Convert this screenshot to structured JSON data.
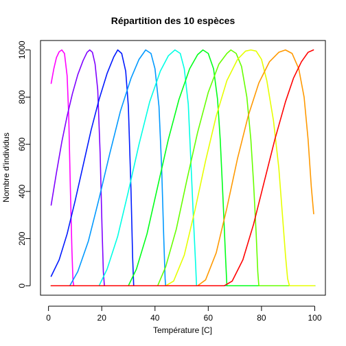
{
  "chart_data": {
    "type": "line",
    "title": "Répartition des 10 espèces",
    "xlabel": "Température [C]",
    "ylabel": "Nombre d'individus",
    "xlim": [
      -3,
      104
    ],
    "ylim": [
      -40,
      1040
    ],
    "x_ticks": [
      0,
      20,
      40,
      60,
      80,
      100
    ],
    "y_ticks": [
      0,
      200,
      400,
      600,
      800,
      1000
    ],
    "x_tick_labels": [
      "0",
      "20",
      "40",
      "60",
      "80",
      "100"
    ],
    "y_tick_labels": [
      "0",
      "200",
      "400",
      "600",
      "800",
      "1000"
    ],
    "grid": false,
    "legend": "none",
    "series": [
      {
        "color": "#FF00FF",
        "points": [
          [
            1,
            858
          ],
          [
            2,
            920
          ],
          [
            3,
            968
          ],
          [
            4,
            992
          ],
          [
            5,
            1000
          ],
          [
            6,
            985
          ],
          [
            7,
            890
          ],
          [
            7.6,
            720
          ],
          [
            8.2,
            420
          ],
          [
            8.8,
            150
          ],
          [
            9.2,
            20
          ],
          [
            9.5,
            0
          ],
          [
            100,
            0
          ]
        ]
      },
      {
        "color": "#7F00FF",
        "points": [
          [
            1,
            342
          ],
          [
            3,
            480
          ],
          [
            5,
            610
          ],
          [
            7,
            720
          ],
          [
            9,
            815
          ],
          [
            11,
            895
          ],
          [
            13,
            955
          ],
          [
            14.5,
            990
          ],
          [
            15.5,
            1000
          ],
          [
            16.5,
            990
          ],
          [
            17.5,
            940
          ],
          [
            18.5,
            830
          ],
          [
            19.4,
            560
          ],
          [
            20.1,
            250
          ],
          [
            20.6,
            60
          ],
          [
            21,
            0
          ],
          [
            100,
            0
          ]
        ]
      },
      {
        "color": "#0019FF",
        "points": [
          [
            1,
            40
          ],
          [
            4,
            110
          ],
          [
            7,
            220
          ],
          [
            10,
            360
          ],
          [
            13,
            510
          ],
          [
            16,
            660
          ],
          [
            19,
            790
          ],
          [
            22,
            900
          ],
          [
            24.5,
            970
          ],
          [
            26,
            1000
          ],
          [
            27.5,
            985
          ],
          [
            29,
            910
          ],
          [
            30,
            760
          ],
          [
            31,
            400
          ],
          [
            31.6,
            120
          ],
          [
            32,
            0
          ],
          [
            100,
            0
          ]
        ]
      },
      {
        "color": "#0099FF",
        "points": [
          [
            1,
            0
          ],
          [
            8,
            0
          ],
          [
            11,
            60
          ],
          [
            15,
            190
          ],
          [
            19,
            370
          ],
          [
            23,
            560
          ],
          [
            27,
            740
          ],
          [
            31,
            880
          ],
          [
            34,
            960
          ],
          [
            36.5,
            1000
          ],
          [
            38.5,
            985
          ],
          [
            40,
            920
          ],
          [
            41.5,
            760
          ],
          [
            42.5,
            500
          ],
          [
            43.3,
            200
          ],
          [
            43.8,
            30
          ],
          [
            44,
            0
          ],
          [
            100,
            0
          ]
        ]
      },
      {
        "color": "#00FFE5",
        "points": [
          [
            1,
            0
          ],
          [
            19,
            0
          ],
          [
            22,
            70
          ],
          [
            26,
            210
          ],
          [
            30,
            400
          ],
          [
            34,
            600
          ],
          [
            38,
            780
          ],
          [
            42,
            910
          ],
          [
            45,
            975
          ],
          [
            47.5,
            1000
          ],
          [
            49.5,
            985
          ],
          [
            51,
            920
          ],
          [
            52.5,
            770
          ],
          [
            53.5,
            520
          ],
          [
            54.5,
            270
          ],
          [
            55.3,
            80
          ],
          [
            55.6,
            0
          ],
          [
            100,
            0
          ]
        ]
      },
      {
        "color": "#00FF19",
        "points": [
          [
            1,
            0
          ],
          [
            30,
            0
          ],
          [
            33,
            70
          ],
          [
            37,
            220
          ],
          [
            41,
            420
          ],
          [
            45,
            620
          ],
          [
            49,
            790
          ],
          [
            53,
            920
          ],
          [
            56,
            980
          ],
          [
            58,
            1000
          ],
          [
            60,
            985
          ],
          [
            62,
            920
          ],
          [
            63.5,
            790
          ],
          [
            64.5,
            620
          ],
          [
            65.5,
            380
          ],
          [
            66.5,
            120
          ],
          [
            67,
            0
          ],
          [
            100,
            0
          ]
        ]
      },
      {
        "color": "#66FF00",
        "points": [
          [
            1,
            0
          ],
          [
            41,
            0
          ],
          [
            44,
            80
          ],
          [
            48,
            240
          ],
          [
            52,
            450
          ],
          [
            56,
            650
          ],
          [
            60,
            820
          ],
          [
            64,
            940
          ],
          [
            67,
            985
          ],
          [
            68.5,
            1000
          ],
          [
            70.5,
            985
          ],
          [
            72.5,
            930
          ],
          [
            74.5,
            800
          ],
          [
            76,
            620
          ],
          [
            77,
            440
          ],
          [
            78,
            220
          ],
          [
            78.6,
            60
          ],
          [
            79,
            0
          ],
          [
            100,
            0
          ]
        ]
      },
      {
        "color": "#E6FF00",
        "points": [
          [
            1,
            0
          ],
          [
            44,
            0
          ],
          [
            47,
            20
          ],
          [
            51,
            130
          ],
          [
            55,
            320
          ],
          [
            59,
            530
          ],
          [
            63,
            720
          ],
          [
            67,
            870
          ],
          [
            71,
            960
          ],
          [
            74,
            995
          ],
          [
            76,
            1000
          ],
          [
            78,
            995
          ],
          [
            80,
            960
          ],
          [
            82,
            870
          ],
          [
            84.5,
            700
          ],
          [
            86.5,
            500
          ],
          [
            88,
            280
          ],
          [
            89,
            130
          ],
          [
            89.8,
            30
          ],
          [
            90.5,
            0
          ],
          [
            100,
            0
          ]
        ]
      },
      {
        "color": "#FF9900",
        "points": [
          [
            1,
            0
          ],
          [
            56,
            0
          ],
          [
            59,
            25
          ],
          [
            63,
            140
          ],
          [
            67,
            330
          ],
          [
            71,
            540
          ],
          [
            75,
            720
          ],
          [
            79,
            860
          ],
          [
            83,
            950
          ],
          [
            86.5,
            990
          ],
          [
            89,
            1000
          ],
          [
            91.5,
            985
          ],
          [
            94,
            920
          ],
          [
            96,
            800
          ],
          [
            97.5,
            620
          ],
          [
            98.7,
            420
          ],
          [
            99.6,
            305
          ]
        ]
      },
      {
        "color": "#FF0000",
        "points": [
          [
            1,
            0
          ],
          [
            66,
            0
          ],
          [
            69,
            20
          ],
          [
            73,
            110
          ],
          [
            77,
            260
          ],
          [
            81,
            440
          ],
          [
            85,
            620
          ],
          [
            89,
            780
          ],
          [
            92,
            880
          ],
          [
            95,
            950
          ],
          [
            97.5,
            990
          ],
          [
            99.5,
            1000
          ]
        ]
      }
    ]
  }
}
